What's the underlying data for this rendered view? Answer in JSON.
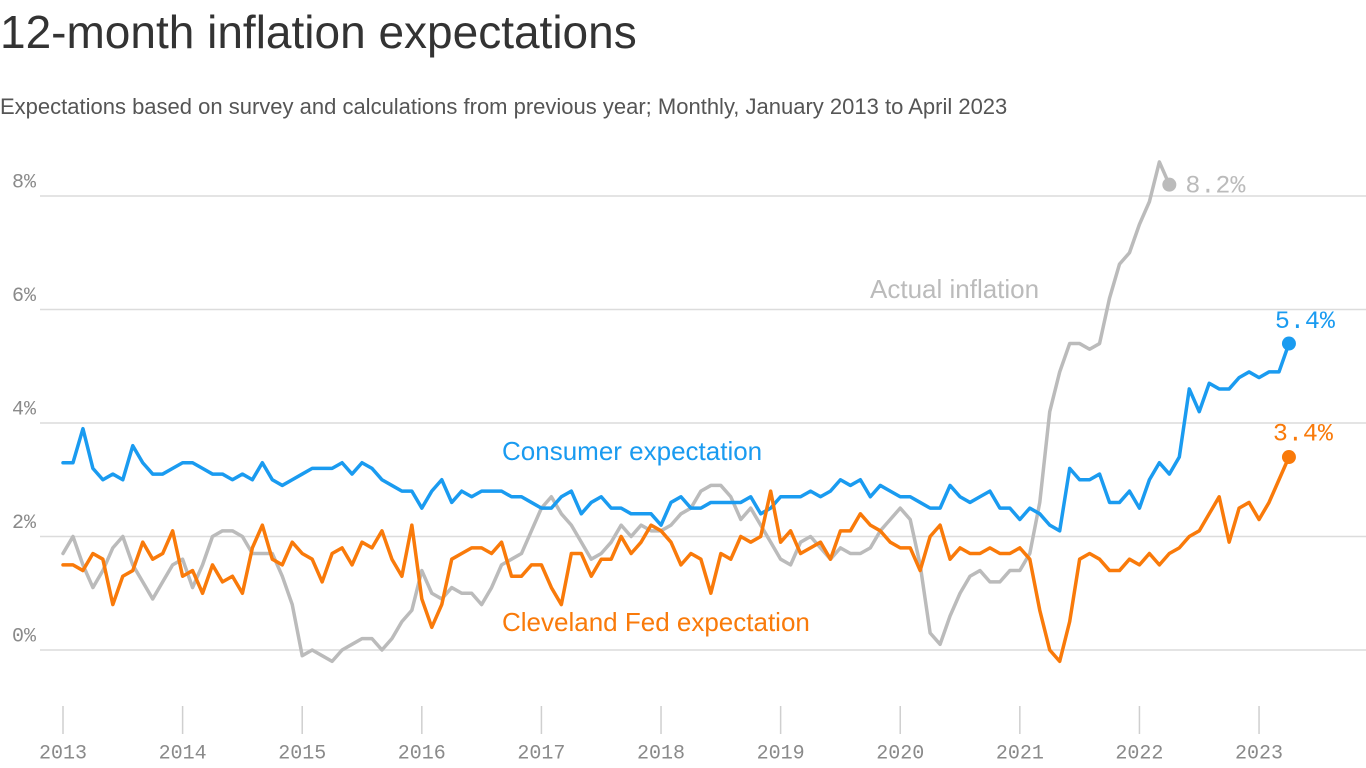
{
  "chart_data": {
    "type": "line",
    "title": "12-month inflation expectations",
    "subtitle": "Expectations based on survey and calculations from previous year; Monthly, January 2013 to April 2023",
    "categories": [
      "2013",
      null,
      null,
      null,
      null,
      null,
      null,
      null,
      null,
      null,
      null,
      null,
      "2014",
      null,
      null,
      null,
      null,
      null,
      null,
      null,
      null,
      null,
      null,
      null,
      "2015",
      null,
      null,
      null,
      null,
      null,
      null,
      null,
      null,
      null,
      null,
      null,
      "2016",
      null,
      null,
      null,
      null,
      null,
      null,
      null,
      null,
      null,
      null,
      null,
      "2017",
      null,
      null,
      null,
      null,
      null,
      null,
      null,
      null,
      null,
      null,
      null,
      "2018",
      null,
      null,
      null,
      null,
      null,
      null,
      null,
      null,
      null,
      null,
      null,
      "2019",
      null,
      null,
      null,
      null,
      null,
      null,
      null,
      null,
      null,
      null,
      null,
      "2020",
      null,
      null,
      null,
      null,
      null,
      null,
      null,
      null,
      null,
      null,
      null,
      "2021",
      null,
      null,
      null,
      null,
      null,
      null,
      null,
      null,
      null,
      null,
      null,
      "2022",
      null,
      null,
      null,
      null,
      null,
      null,
      null,
      null,
      null,
      null,
      null,
      "2023",
      null,
      null,
      null
    ],
    "ylim": [
      -1,
      8.8
    ],
    "yticks": [
      {
        "value": 0,
        "label": "0%"
      },
      {
        "value": 2,
        "label": "2%"
      },
      {
        "value": 4,
        "label": "4%"
      },
      {
        "value": 6,
        "label": "6%"
      },
      {
        "value": 8,
        "label": "8%"
      }
    ],
    "grid": true,
    "series": [
      {
        "name": "Actual inflation",
        "color": "#bbbbbb",
        "values": [
          1.7,
          2.0,
          1.5,
          1.1,
          1.4,
          1.8,
          2.0,
          1.5,
          1.2,
          0.9,
          1.2,
          1.5,
          1.6,
          1.1,
          1.5,
          2.0,
          2.1,
          2.1,
          2.0,
          1.7,
          1.7,
          1.7,
          1.3,
          0.8,
          -0.1,
          0.0,
          -0.1,
          -0.2,
          0.0,
          0.1,
          0.2,
          0.2,
          0.0,
          0.2,
          0.5,
          0.7,
          1.4,
          1.0,
          0.9,
          1.1,
          1.0,
          1.0,
          0.8,
          1.1,
          1.5,
          1.6,
          1.7,
          2.1,
          2.5,
          2.7,
          2.4,
          2.2,
          1.9,
          1.6,
          1.7,
          1.9,
          2.2,
          2.0,
          2.2,
          2.1,
          2.1,
          2.2,
          2.4,
          2.5,
          2.8,
          2.9,
          2.9,
          2.7,
          2.3,
          2.5,
          2.2,
          1.9,
          1.6,
          1.5,
          1.9,
          2.0,
          1.8,
          1.6,
          1.8,
          1.7,
          1.7,
          1.8,
          2.1,
          2.3,
          2.5,
          2.3,
          1.5,
          0.3,
          0.1,
          0.6,
          1.0,
          1.3,
          1.4,
          1.2,
          1.2,
          1.4,
          1.4,
          1.7,
          2.6,
          4.2,
          4.9,
          5.4,
          5.4,
          5.3,
          5.4,
          6.2,
          6.8,
          7.0,
          7.5,
          7.9,
          8.6,
          8.2,
          null,
          null,
          null,
          null,
          null,
          null,
          null,
          null,
          null,
          null,
          null,
          null
        ],
        "value_labels": [
          null,
          null,
          null,
          null,
          null,
          null,
          null,
          null,
          null,
          null,
          null,
          null,
          null,
          null,
          null,
          null,
          null,
          null,
          null,
          null,
          null,
          null,
          null,
          null,
          null,
          null,
          null,
          null,
          null,
          null,
          null,
          null,
          null,
          null,
          null,
          null,
          null,
          null,
          null,
          null,
          null,
          null,
          null,
          null,
          null,
          null,
          null,
          null,
          null,
          null,
          null,
          null,
          null,
          null,
          null,
          null,
          null,
          null,
          null,
          null,
          null,
          null,
          null,
          null,
          null,
          null,
          null,
          null,
          null,
          null,
          null,
          null,
          null,
          null,
          null,
          null,
          null,
          null,
          null,
          null,
          null,
          null,
          null,
          null,
          null,
          null,
          null,
          null,
          null,
          null,
          null,
          null,
          null,
          null,
          null,
          null,
          null,
          null,
          null,
          null,
          null,
          null,
          null,
          null,
          null,
          null,
          null,
          null,
          null,
          null,
          null,
          "8.2%",
          null,
          null,
          null,
          null,
          null,
          null,
          null,
          null,
          null,
          null,
          null,
          null
        ]
      },
      {
        "name": "Consumer expectation",
        "color": "#1a9bf0",
        "values": [
          3.3,
          3.3,
          3.9,
          3.2,
          3.0,
          3.1,
          3.0,
          3.6,
          3.3,
          3.1,
          3.1,
          3.2,
          3.3,
          3.3,
          3.2,
          3.1,
          3.1,
          3.0,
          3.1,
          3.0,
          3.3,
          3.0,
          2.9,
          3.0,
          3.1,
          3.2,
          3.2,
          3.2,
          3.3,
          3.1,
          3.3,
          3.2,
          3.0,
          2.9,
          2.8,
          2.8,
          2.5,
          2.8,
          3.0,
          2.6,
          2.8,
          2.7,
          2.8,
          2.8,
          2.8,
          2.7,
          2.7,
          2.6,
          2.5,
          2.5,
          2.7,
          2.8,
          2.4,
          2.6,
          2.7,
          2.5,
          2.5,
          2.4,
          2.4,
          2.4,
          2.2,
          2.6,
          2.7,
          2.5,
          2.5,
          2.6,
          2.6,
          2.6,
          2.6,
          2.7,
          2.4,
          2.5,
          2.7,
          2.7,
          2.7,
          2.8,
          2.7,
          2.8,
          3.0,
          2.9,
          3.0,
          2.7,
          2.9,
          2.8,
          2.7,
          2.7,
          2.6,
          2.5,
          2.5,
          2.9,
          2.7,
          2.6,
          2.7,
          2.8,
          2.5,
          2.5,
          2.3,
          2.5,
          2.4,
          2.2,
          2.1,
          3.2,
          3.0,
          3.0,
          3.1,
          2.6,
          2.6,
          2.8,
          2.5,
          3.0,
          3.3,
          3.1,
          3.4,
          4.6,
          4.2,
          4.7,
          4.6,
          4.6,
          4.8,
          4.9,
          4.8,
          4.9,
          4.9,
          5.4
        ],
        "value_labels": [
          null,
          null,
          null,
          null,
          null,
          null,
          null,
          null,
          null,
          null,
          null,
          null,
          null,
          null,
          null,
          null,
          null,
          null,
          null,
          null,
          null,
          null,
          null,
          null,
          null,
          null,
          null,
          null,
          null,
          null,
          null,
          null,
          null,
          null,
          null,
          null,
          null,
          null,
          null,
          null,
          null,
          null,
          null,
          null,
          null,
          null,
          null,
          null,
          null,
          null,
          null,
          null,
          null,
          null,
          null,
          null,
          null,
          null,
          null,
          null,
          null,
          null,
          null,
          null,
          null,
          null,
          null,
          null,
          null,
          null,
          null,
          null,
          null,
          null,
          null,
          null,
          null,
          null,
          null,
          null,
          null,
          null,
          null,
          null,
          null,
          null,
          null,
          null,
          null,
          null,
          null,
          null,
          null,
          null,
          null,
          null,
          null,
          null,
          null,
          null,
          null,
          null,
          null,
          null,
          null,
          null,
          null,
          null,
          null,
          null,
          null,
          null,
          null,
          null,
          null,
          null,
          null,
          null,
          null,
          null,
          null,
          null,
          null,
          "5.4%"
        ]
      },
      {
        "name": "Cleveland Fed expectation",
        "color": "#f97a0a",
        "values": [
          1.5,
          1.5,
          1.4,
          1.7,
          1.6,
          0.8,
          1.3,
          1.4,
          1.9,
          1.6,
          1.7,
          2.1,
          1.3,
          1.4,
          1.0,
          1.5,
          1.2,
          1.3,
          1.0,
          1.8,
          2.2,
          1.6,
          1.5,
          1.9,
          1.7,
          1.6,
          1.2,
          1.7,
          1.8,
          1.5,
          1.9,
          1.8,
          2.1,
          1.6,
          1.3,
          2.2,
          0.9,
          0.4,
          0.8,
          1.6,
          1.7,
          1.8,
          1.8,
          1.7,
          1.9,
          1.3,
          1.3,
          1.5,
          1.5,
          1.1,
          0.8,
          1.7,
          1.7,
          1.3,
          1.6,
          1.6,
          2.0,
          1.7,
          1.9,
          2.2,
          2.1,
          1.9,
          1.5,
          1.7,
          1.6,
          1.0,
          1.7,
          1.6,
          2.0,
          1.9,
          2.0,
          2.8,
          1.9,
          2.1,
          1.7,
          1.8,
          1.9,
          1.6,
          2.1,
          2.1,
          2.4,
          2.2,
          2.1,
          1.9,
          1.8,
          1.8,
          1.4,
          2.0,
          2.2,
          1.6,
          1.8,
          1.7,
          1.7,
          1.8,
          1.7,
          1.7,
          1.8,
          1.6,
          0.7,
          0.0,
          -0.2,
          0.5,
          1.6,
          1.7,
          1.6,
          1.4,
          1.4,
          1.6,
          1.5,
          1.7,
          1.5,
          1.7,
          1.8,
          2.0,
          2.1,
          2.4,
          2.7,
          1.9,
          2.5,
          2.6,
          2.3,
          2.6,
          3.0,
          3.4
        ],
        "value_labels": [
          null,
          null,
          null,
          null,
          null,
          null,
          null,
          null,
          null,
          null,
          null,
          null,
          null,
          null,
          null,
          null,
          null,
          null,
          null,
          null,
          null,
          null,
          null,
          null,
          null,
          null,
          null,
          null,
          null,
          null,
          null,
          null,
          null,
          null,
          null,
          null,
          null,
          null,
          null,
          null,
          null,
          null,
          null,
          null,
          null,
          null,
          null,
          null,
          null,
          null,
          null,
          null,
          null,
          null,
          null,
          null,
          null,
          null,
          null,
          null,
          null,
          null,
          null,
          null,
          null,
          null,
          null,
          null,
          null,
          null,
          null,
          null,
          null,
          null,
          null,
          null,
          null,
          null,
          null,
          null,
          null,
          null,
          null,
          null,
          null,
          null,
          null,
          null,
          null,
          null,
          null,
          null,
          null,
          null,
          null,
          null,
          null,
          null,
          null,
          null,
          null,
          null,
          null,
          null,
          null,
          null,
          null,
          null,
          null,
          null,
          null,
          null,
          null,
          null,
          null,
          null,
          null,
          null,
          null,
          null,
          null,
          null,
          null,
          "3.4%"
        ]
      }
    ]
  }
}
